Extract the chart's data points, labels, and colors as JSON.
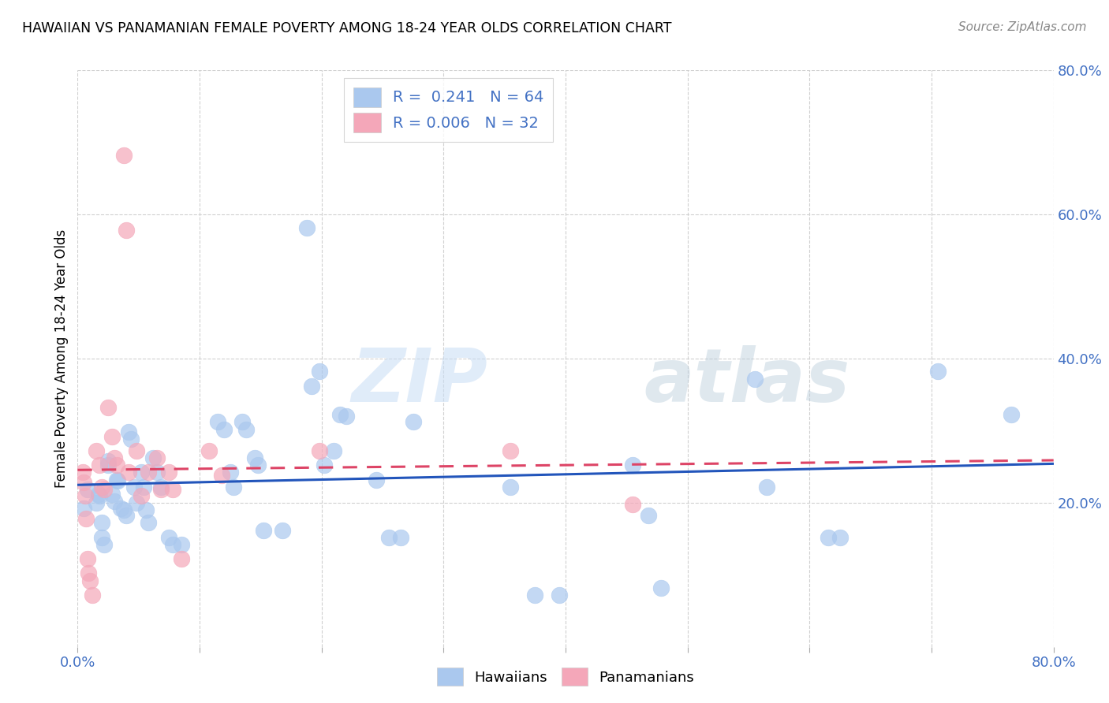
{
  "title": "HAWAIIAN VS PANAMANIAN FEMALE POVERTY AMONG 18-24 YEAR OLDS CORRELATION CHART",
  "source": "Source: ZipAtlas.com",
  "ylabel": "Female Poverty Among 18-24 Year Olds",
  "xlim": [
    0.0,
    0.8
  ],
  "ylim": [
    0.0,
    0.8
  ],
  "ytick_right_values": [
    0.8,
    0.6,
    0.4,
    0.2
  ],
  "hawaiian_R": 0.241,
  "hawaiian_N": 64,
  "panamanian_R": 0.006,
  "panamanian_N": 32,
  "hawaiian_color": "#aac8ee",
  "panamanian_color": "#f4a7b9",
  "hawaiian_line_color": "#2255bb",
  "panamanian_line_color": "#dd4466",
  "watermark_zip": "ZIP",
  "watermark_atlas": "atlas",
  "hawaiian_x": [
    0.005,
    0.008,
    0.015,
    0.017,
    0.018,
    0.02,
    0.02,
    0.022,
    0.025,
    0.025,
    0.028,
    0.03,
    0.032,
    0.033,
    0.035,
    0.038,
    0.04,
    0.042,
    0.044,
    0.046,
    0.048,
    0.052,
    0.054,
    0.056,
    0.058,
    0.062,
    0.065,
    0.068,
    0.075,
    0.078,
    0.085,
    0.115,
    0.12,
    0.125,
    0.128,
    0.135,
    0.138,
    0.145,
    0.148,
    0.152,
    0.168,
    0.188,
    0.192,
    0.198,
    0.202,
    0.21,
    0.215,
    0.22,
    0.245,
    0.255,
    0.265,
    0.275,
    0.355,
    0.375,
    0.395,
    0.455,
    0.468,
    0.478,
    0.555,
    0.565,
    0.615,
    0.625,
    0.705,
    0.765
  ],
  "hawaiian_y": [
    0.192,
    0.218,
    0.2,
    0.212,
    0.21,
    0.172,
    0.152,
    0.142,
    0.252,
    0.258,
    0.212,
    0.202,
    0.232,
    0.23,
    0.192,
    0.19,
    0.182,
    0.298,
    0.288,
    0.222,
    0.2,
    0.242,
    0.222,
    0.19,
    0.172,
    0.262,
    0.242,
    0.222,
    0.152,
    0.142,
    0.142,
    0.312,
    0.302,
    0.242,
    0.222,
    0.312,
    0.302,
    0.262,
    0.252,
    0.162,
    0.162,
    0.582,
    0.362,
    0.382,
    0.252,
    0.272,
    0.322,
    0.32,
    0.232,
    0.152,
    0.152,
    0.312,
    0.222,
    0.072,
    0.072,
    0.252,
    0.182,
    0.082,
    0.372,
    0.222,
    0.152,
    0.152,
    0.382,
    0.322
  ],
  "panamanian_x": [
    0.004,
    0.005,
    0.006,
    0.007,
    0.008,
    0.009,
    0.01,
    0.012,
    0.015,
    0.018,
    0.02,
    0.022,
    0.025,
    0.028,
    0.03,
    0.032,
    0.038,
    0.04,
    0.042,
    0.048,
    0.052,
    0.058,
    0.065,
    0.068,
    0.075,
    0.078,
    0.085,
    0.108,
    0.118,
    0.198,
    0.355,
    0.455
  ],
  "panamanian_y": [
    0.242,
    0.228,
    0.21,
    0.178,
    0.122,
    0.102,
    0.092,
    0.072,
    0.272,
    0.252,
    0.222,
    0.218,
    0.332,
    0.292,
    0.262,
    0.252,
    0.682,
    0.578,
    0.242,
    0.272,
    0.21,
    0.242,
    0.262,
    0.218,
    0.242,
    0.218,
    0.122,
    0.272,
    0.238,
    0.272,
    0.272,
    0.198
  ],
  "grid_color": "#d0d0d0",
  "background_color": "#ffffff",
  "tick_color": "#4472c4",
  "legend_text_color": "#4472c4"
}
